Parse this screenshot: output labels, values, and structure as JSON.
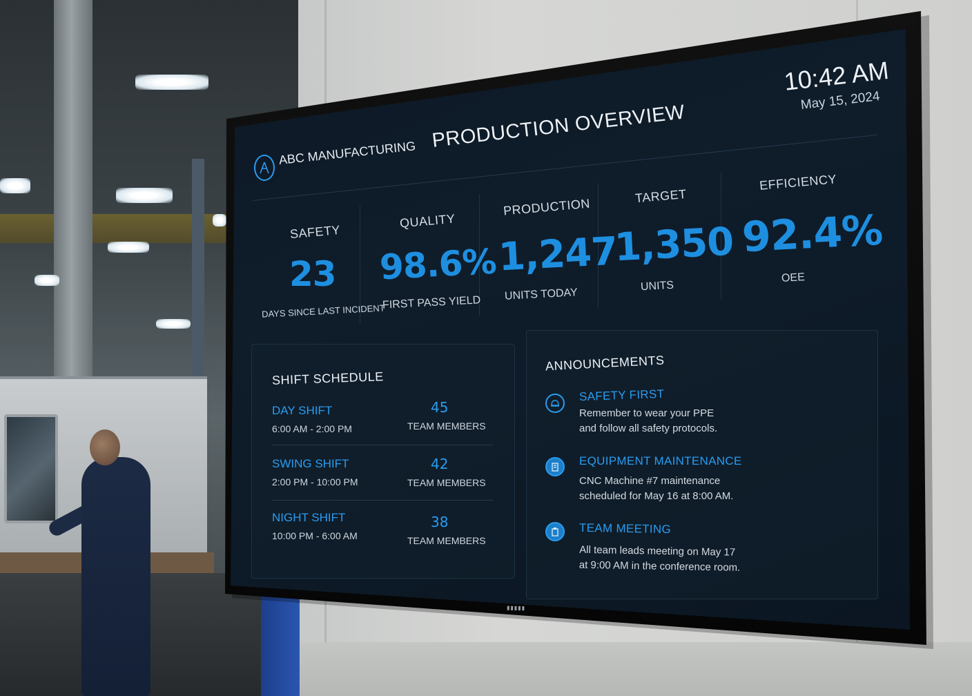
{
  "dashboard": {
    "brand": "ABC MANUFACTURING",
    "title": "PRODUCTION OVERVIEW",
    "time": "10:42 AM",
    "date": "May 15, 2024",
    "accent_color": "#1e8fe0"
  },
  "kpis": [
    {
      "label": "SAFETY",
      "value": "23",
      "sub": "DAYS SINCE LAST INCIDENT"
    },
    {
      "label": "QUALITY",
      "value": "98.6%",
      "sub": "FIRST PASS YIELD"
    },
    {
      "label": "PRODUCTION",
      "value": "1,247",
      "sub": "UNITS TODAY"
    },
    {
      "label": "TARGET",
      "value": "1,350",
      "sub": "UNITS"
    },
    {
      "label": "EFFICIENCY",
      "value": "92.4%",
      "sub": "OEE"
    }
  ],
  "shift_schedule": {
    "title": "SHIFT SCHEDULE",
    "shifts": [
      {
        "name": "DAY SHIFT",
        "time": "6:00 AM - 2:00 PM",
        "count": "45",
        "members_label": "TEAM MEMBERS"
      },
      {
        "name": "SWING SHIFT",
        "time": "2:00 PM - 10:00 PM",
        "count": "42",
        "members_label": "TEAM MEMBERS"
      },
      {
        "name": "NIGHT SHIFT",
        "time": "10:00 PM - 6:00 AM",
        "count": "38",
        "members_label": "TEAM MEMBERS"
      }
    ]
  },
  "announcements": {
    "title": "ANNOUNCEMENTS",
    "items": [
      {
        "title": "SAFETY FIRST",
        "line1": "Remember to wear your PPE",
        "line2": "and follow all safety protocols.",
        "icon": "hard-hat-icon"
      },
      {
        "title": "EQUIPMENT MAINTENANCE",
        "line1": "CNC Machine #7 maintenance",
        "line2": "scheduled for May 16 at 8:00 AM.",
        "icon": "building-icon"
      },
      {
        "title": "TEAM MEETING",
        "line1": "All team leads meeting on May 17",
        "line2": "at 9:00 AM in the conference room.",
        "icon": "clipboard-icon"
      }
    ]
  }
}
